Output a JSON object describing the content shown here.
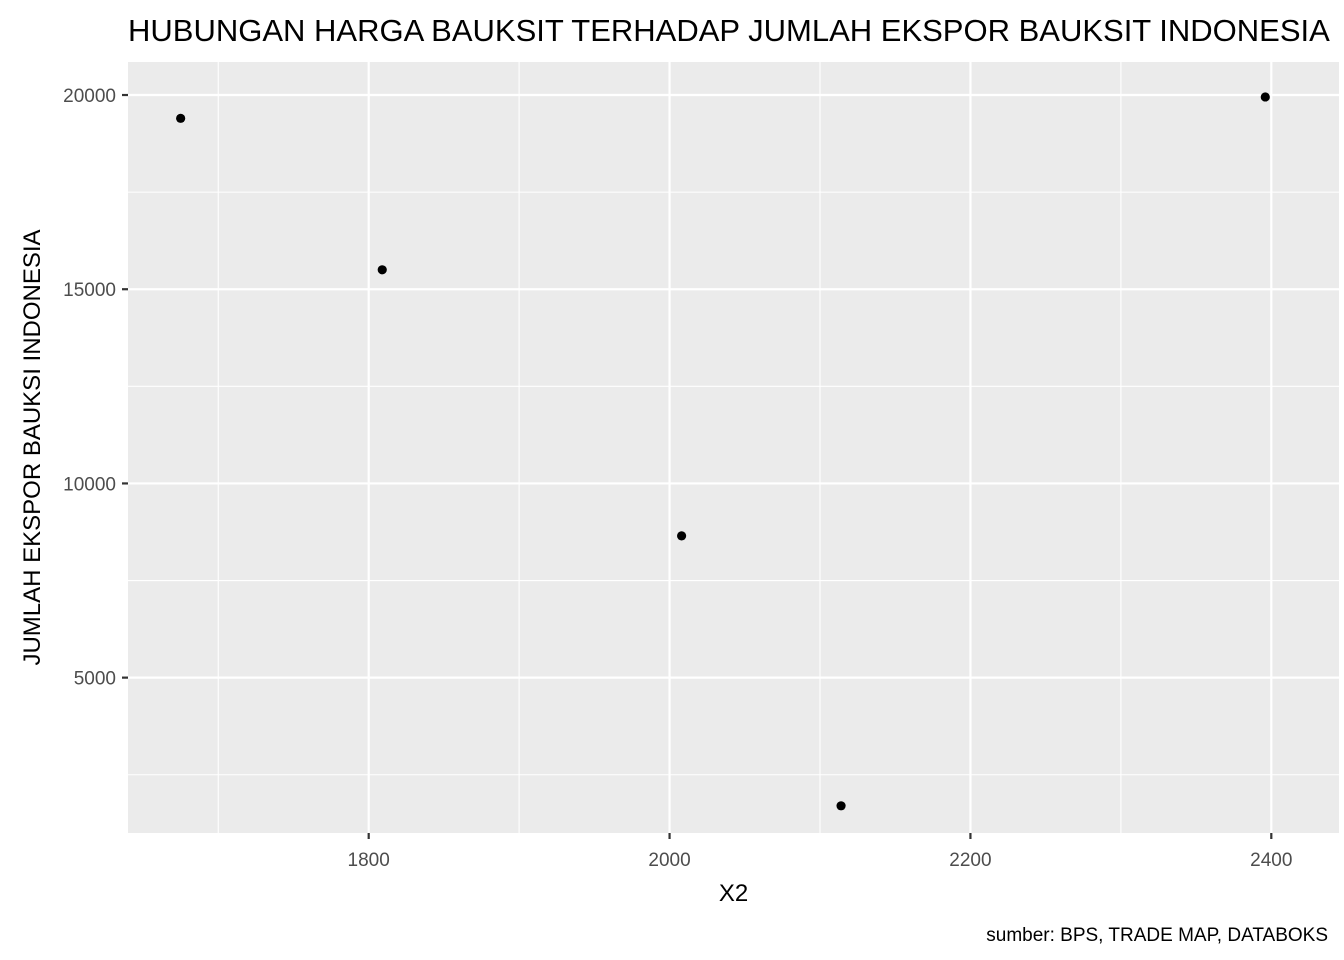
{
  "chart_data": {
    "type": "scatter",
    "title": "HUBUNGAN HARGA BAUKSIT TERHADAP JUMLAH EKSPOR BAUKSIT INDONESIA",
    "xlabel": "X2",
    "ylabel": "JUMLAH EKSPOR BAUKSI INDONESIA",
    "caption": "sumber: BPS, TRADE MAP, DATABOKS",
    "xlim": [
      1640,
      2445
    ],
    "ylim": [
      1000,
      20850
    ],
    "x_major_ticks": [
      1800,
      2000,
      2200,
      2400
    ],
    "x_tick_labels": [
      "1800",
      "2000",
      "2200",
      "2400"
    ],
    "x_minor_ticks": [
      1700,
      1900,
      2100,
      2300
    ],
    "y_major_ticks": [
      5000,
      10000,
      15000,
      20000
    ],
    "y_tick_labels": [
      "5000",
      "10000",
      "15000",
      "20000"
    ],
    "y_minor_ticks": [
      2500,
      7500,
      12500,
      17500
    ],
    "grid": true,
    "points": [
      {
        "x": 1675,
        "y": 19400
      },
      {
        "x": 1809,
        "y": 15500
      },
      {
        "x": 2008,
        "y": 8650
      },
      {
        "x": 2114,
        "y": 1700
      },
      {
        "x": 2396,
        "y": 19950
      }
    ]
  }
}
